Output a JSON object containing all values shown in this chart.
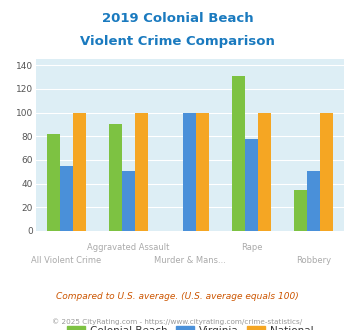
{
  "title_line1": "2019 Colonial Beach",
  "title_line2": "Violent Crime Comparison",
  "title_color": "#1a7abf",
  "categories": [
    "All Violent Crime",
    "Aggravated Assault",
    "Murder & Mans...",
    "Rape",
    "Robbery"
  ],
  "series": {
    "Colonial Beach": [
      82,
      90,
      0,
      131,
      35
    ],
    "Virginia": [
      55,
      51,
      100,
      78,
      51
    ],
    "National": [
      100,
      100,
      100,
      100,
      100
    ]
  },
  "colors": {
    "Colonial Beach": "#7dc242",
    "Virginia": "#4a90d9",
    "National": "#f5a623"
  },
  "ylim": [
    0,
    145
  ],
  "yticks": [
    0,
    20,
    40,
    60,
    80,
    100,
    120,
    140
  ],
  "footnote1": "Compared to U.S. average. (U.S. average equals 100)",
  "footnote2": "© 2025 CityRating.com - https://www.cityrating.com/crime-statistics/",
  "footnote1_color": "#cc5500",
  "footnote2_color": "#999999",
  "plot_bg": "#ddeef5"
}
